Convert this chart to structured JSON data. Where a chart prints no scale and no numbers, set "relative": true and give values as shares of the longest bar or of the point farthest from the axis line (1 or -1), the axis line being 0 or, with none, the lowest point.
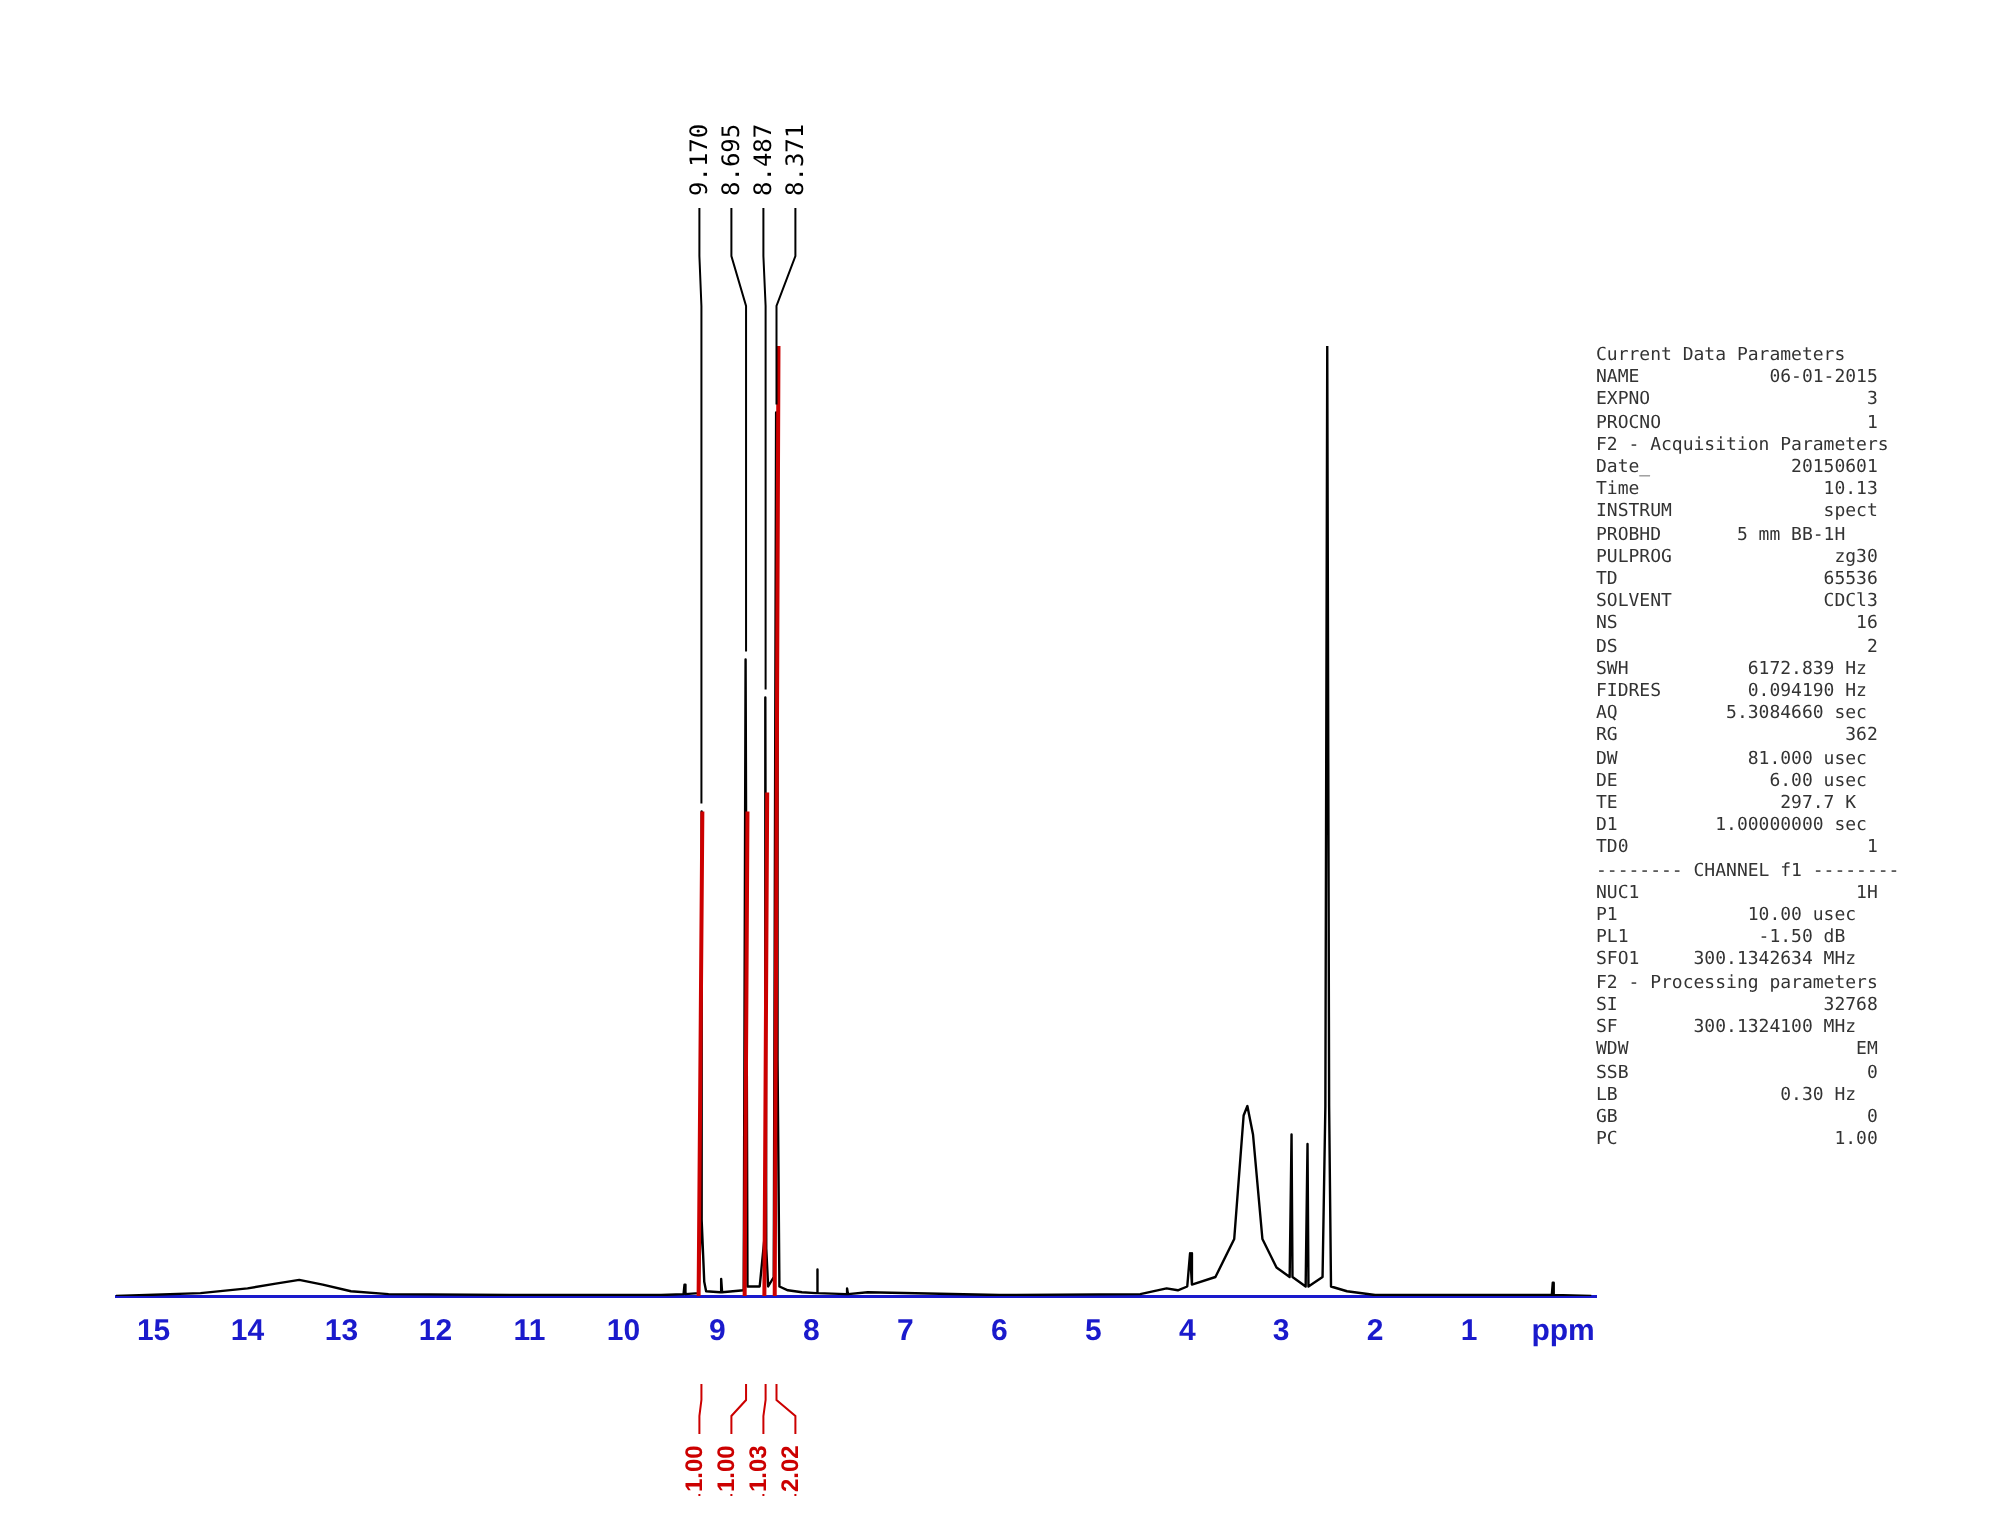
{
  "chart_data": {
    "type": "line",
    "relative": true,
    "xlim": [
      15.4,
      -0.35
    ],
    "xticks": [
      15,
      14,
      13,
      12,
      11,
      10,
      9,
      8,
      7,
      6,
      5,
      4,
      3,
      2,
      1,
      {
        "value": 0,
        "label": "ppm"
      }
    ],
    "tick_labels": "x",
    "grid": false,
    "legend": false,
    "marker": "none",
    "line_style": "solid",
    "series": [
      {
        "color": "#000000",
        "x": [
          15.4,
          14.5,
          14.0,
          13.7,
          13.45,
          13.2,
          12.9,
          12.5,
          11,
          9.6,
          9.36,
          9.35,
          9.34,
          9.2,
          9.175,
          9.17,
          9.165,
          9.14,
          9.12,
          8.97,
          8.96,
          8.95,
          8.72,
          8.7,
          8.68,
          8.55,
          8.5,
          8.49,
          8.48,
          8.46,
          8.4,
          8.375,
          8.36,
          8.34,
          8.25,
          8.1,
          7.95,
          7.94,
          7.93,
          7.63,
          7.62,
          7.61,
          7.4,
          6,
          4.5,
          4.22,
          4.1,
          4.0,
          3.97,
          3.95,
          3.7,
          3.5,
          3.4,
          3.36,
          3.3,
          3.2,
          3.05,
          2.91,
          2.89,
          2.88,
          2.74,
          2.72,
          2.71,
          2.56,
          2.53,
          2.51,
          2.49,
          2.47,
          2.3,
          2.0,
          0.12,
          0.11,
          0.1,
          -0.3
        ],
        "values": [
          0.0,
          0.003,
          0.008,
          0.013,
          0.017,
          0.012,
          0.005,
          0.002,
          0.001,
          0.001,
          0.002,
          0.012,
          0.002,
          0.003,
          0.08,
          0.51,
          0.08,
          0.015,
          0.005,
          0.004,
          0.018,
          0.004,
          0.006,
          0.67,
          0.01,
          0.01,
          0.06,
          0.63,
          0.05,
          0.01,
          0.02,
          0.93,
          0.25,
          0.01,
          0.006,
          0.004,
          0.003,
          0.028,
          0.003,
          0.002,
          0.008,
          0.002,
          0.004,
          0.001,
          0.002,
          0.008,
          0.006,
          0.01,
          0.045,
          0.012,
          0.02,
          0.06,
          0.19,
          0.2,
          0.17,
          0.06,
          0.03,
          0.02,
          0.17,
          0.02,
          0.01,
          0.16,
          0.01,
          0.02,
          0.2,
          1.0,
          0.2,
          0.01,
          0.005,
          0.001,
          0.001,
          0.014,
          0.001,
          0.0
        ]
      },
      {
        "color": "#cc0000",
        "x": [
          9.2,
          9.16,
          9.0,
          8.71,
          8.68,
          8.6,
          8.5,
          8.47,
          8.42,
          8.39,
          8.35
        ],
        "values": [
          0,
          0.51,
          null,
          0,
          0.51,
          null,
          0,
          0.53,
          null,
          0,
          1.0
        ]
      }
    ],
    "annotations": [
      {
        "text": "9.170",
        "x": 9.17,
        "y": 0.51
      },
      {
        "text": "8.695",
        "x": 8.695,
        "y": 0.67
      },
      {
        "text": "8.487",
        "x": 8.487,
        "y": 0.63
      },
      {
        "text": "8.371",
        "x": 8.371,
        "y": 0.93
      },
      {
        "text": "1.00",
        "x": 9.17
      },
      {
        "text": "1.00",
        "x": 8.695
      },
      {
        "text": "1.03",
        "x": 8.487
      },
      {
        "text": "2.02",
        "x": 8.371
      },
      "Current Data Parameters",
      "NAME            06-01-2015",
      "EXPNO                    3",
      "PROCNO                   1",
      "F2 - Acquisition Parameters",
      "Date_             20150601",
      "Time                 10.13",
      "INSTRUM              spect",
      "PROBHD       5 mm BB-1H",
      "PULPROG               zg30",
      "TD                   65536",
      "SOLVENT              CDCl3",
      "NS                      16",
      "DS                       2",
      "SWH           6172.839 Hz",
      "FIDRES        0.094190 Hz",
      "AQ          5.3084660 sec",
      "RG                     362",
      "DW            81.000 usec",
      "DE              6.00 usec",
      "TE               297.7 K",
      "D1         1.00000000 sec",
      "TD0                      1",
      "-------- CHANNEL f1 --------",
      "NUC1                    1H",
      "P1            10.00 usec",
      "PL1            -1.50 dB",
      "SFO1     300.1342634 MHz",
      "F2 - Processing parameters",
      "SI                   32768",
      "SF       300.1324100 MHz",
      "WDW                     EM",
      "SSB                      0",
      "LB               0.30 Hz",
      "GB                       0",
      "PC                    1.00"
    ]
  }
}
